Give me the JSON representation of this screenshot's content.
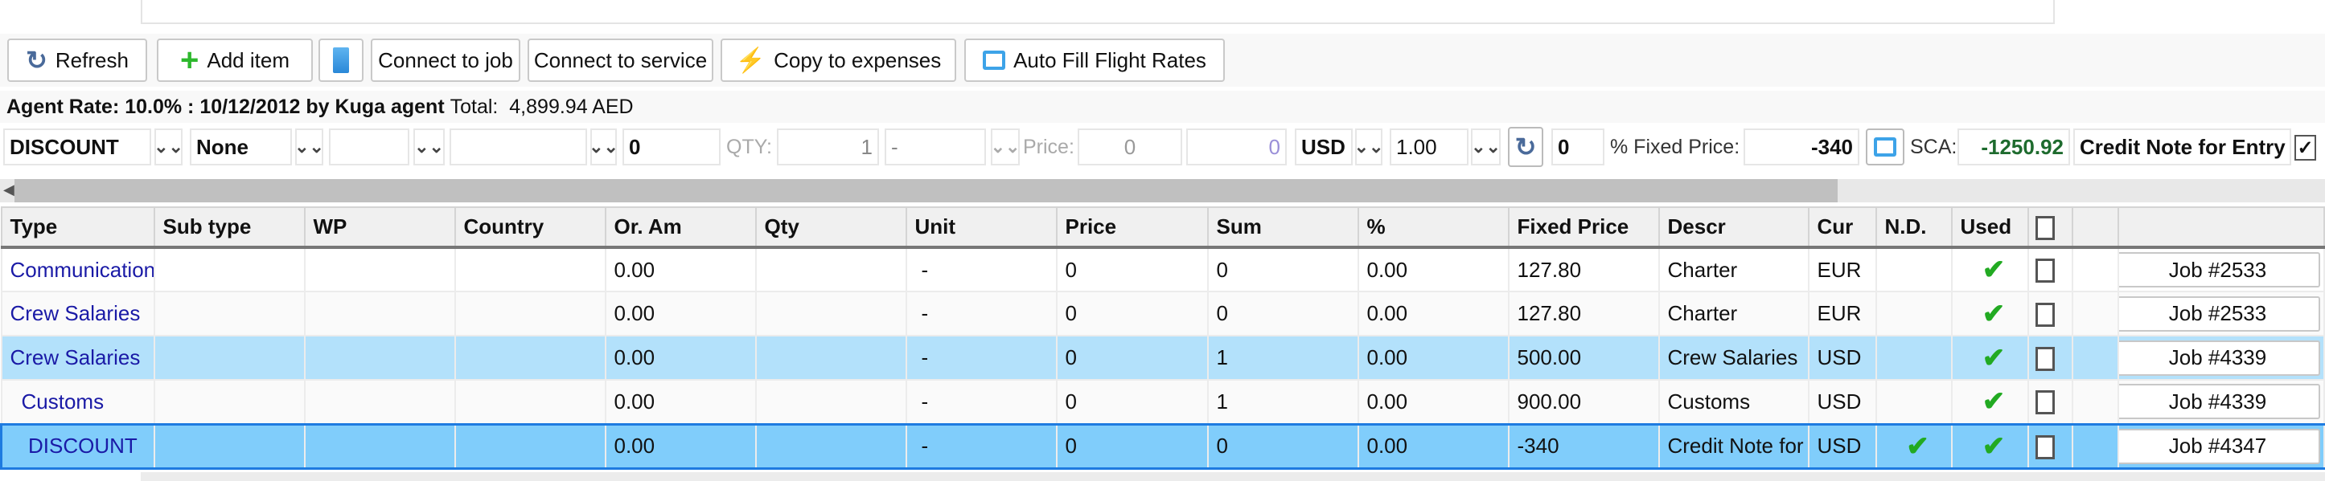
{
  "toolbar": {
    "refresh": "Refresh",
    "add_item": "Add item",
    "connect_job": "Connect to job",
    "connect_service": "Connect to service",
    "copy_expenses": "Copy to expenses",
    "auto_fill": "Auto Fill Flight Rates"
  },
  "info": {
    "agent_rate": "Agent Rate: 10.0% : 10/12/2012 by Kuga agent",
    "total_label": "Total:",
    "total_value": "4,899.94 AED"
  },
  "filter": {
    "type": "DISCOUNT",
    "subtype": "None",
    "wp": "",
    "country": "",
    "or_amount": "0",
    "qty_label": "QTY:",
    "qty": "1",
    "unit": "-",
    "price_label": "Price:",
    "price": "0",
    "price2": "0",
    "currency": "USD",
    "rate": "1.00",
    "percent": "0",
    "fixed_price_label": "% Fixed Price:",
    "fixed_price": "-340",
    "sca_label": "SCA:",
    "sca": "-1250.92",
    "descr": "Credit Note for Entry",
    "checked": true,
    "sca_color": "#1e6b2e",
    "price2_color": "#9a8fd8"
  },
  "table": {
    "columns": [
      "Type",
      "Sub type",
      "WP",
      "Country",
      "Or. Am",
      "Qty",
      "Unit",
      "Price",
      "Sum",
      "%",
      "Fixed Price",
      "Descr",
      "Cur",
      "N.D.",
      "Used",
      "",
      "",
      " "
    ],
    "rows": [
      {
        "type": "Communications",
        "subtype": "",
        "wp": "",
        "country": "",
        "or_am": "0.00",
        "qty": "",
        "unit": "-",
        "price": "0",
        "sum": "0",
        "pct": "0.00",
        "fixed": "127.80",
        "descr": "Charter",
        "cur": "EUR",
        "nd": false,
        "used": true,
        "job": "Job #2533",
        "state": "normal"
      },
      {
        "type": "Crew Salaries",
        "subtype": "",
        "wp": "",
        "country": "",
        "or_am": "0.00",
        "qty": "",
        "unit": "-",
        "price": "0",
        "sum": "0",
        "pct": "0.00",
        "fixed": "127.80",
        "descr": "Charter",
        "cur": "EUR",
        "nd": false,
        "used": true,
        "job": "Job #2533",
        "state": "alt"
      },
      {
        "type": "Crew Salaries",
        "subtype": "",
        "wp": "",
        "country": "",
        "or_am": "0.00",
        "qty": "",
        "unit": "-",
        "price": "0",
        "sum": "1",
        "pct": "0.00",
        "fixed": "500.00",
        "descr": "Crew Salaries",
        "cur": "USD",
        "nd": false,
        "used": true,
        "job": "Job #4339",
        "state": "sel"
      },
      {
        "type": "Customs",
        "subtype": "",
        "wp": "",
        "country": "",
        "or_am": "0.00",
        "qty": "",
        "unit": "-",
        "price": "0",
        "sum": "1",
        "pct": "0.00",
        "fixed": "900.00",
        "descr": "Customs",
        "cur": "USD",
        "nd": false,
        "used": true,
        "job": "Job #4339",
        "state": "alt"
      },
      {
        "type": "DISCOUNT",
        "subtype": "",
        "wp": "",
        "country": "",
        "or_am": "0.00",
        "qty": "",
        "unit": "-",
        "price": "0",
        "sum": "0",
        "pct": "0.00",
        "fixed": "-340",
        "descr": "Credit Note for Entry",
        "cur": "USD",
        "nd": true,
        "used": true,
        "job": "Job #4347",
        "state": "cur"
      }
    ]
  }
}
